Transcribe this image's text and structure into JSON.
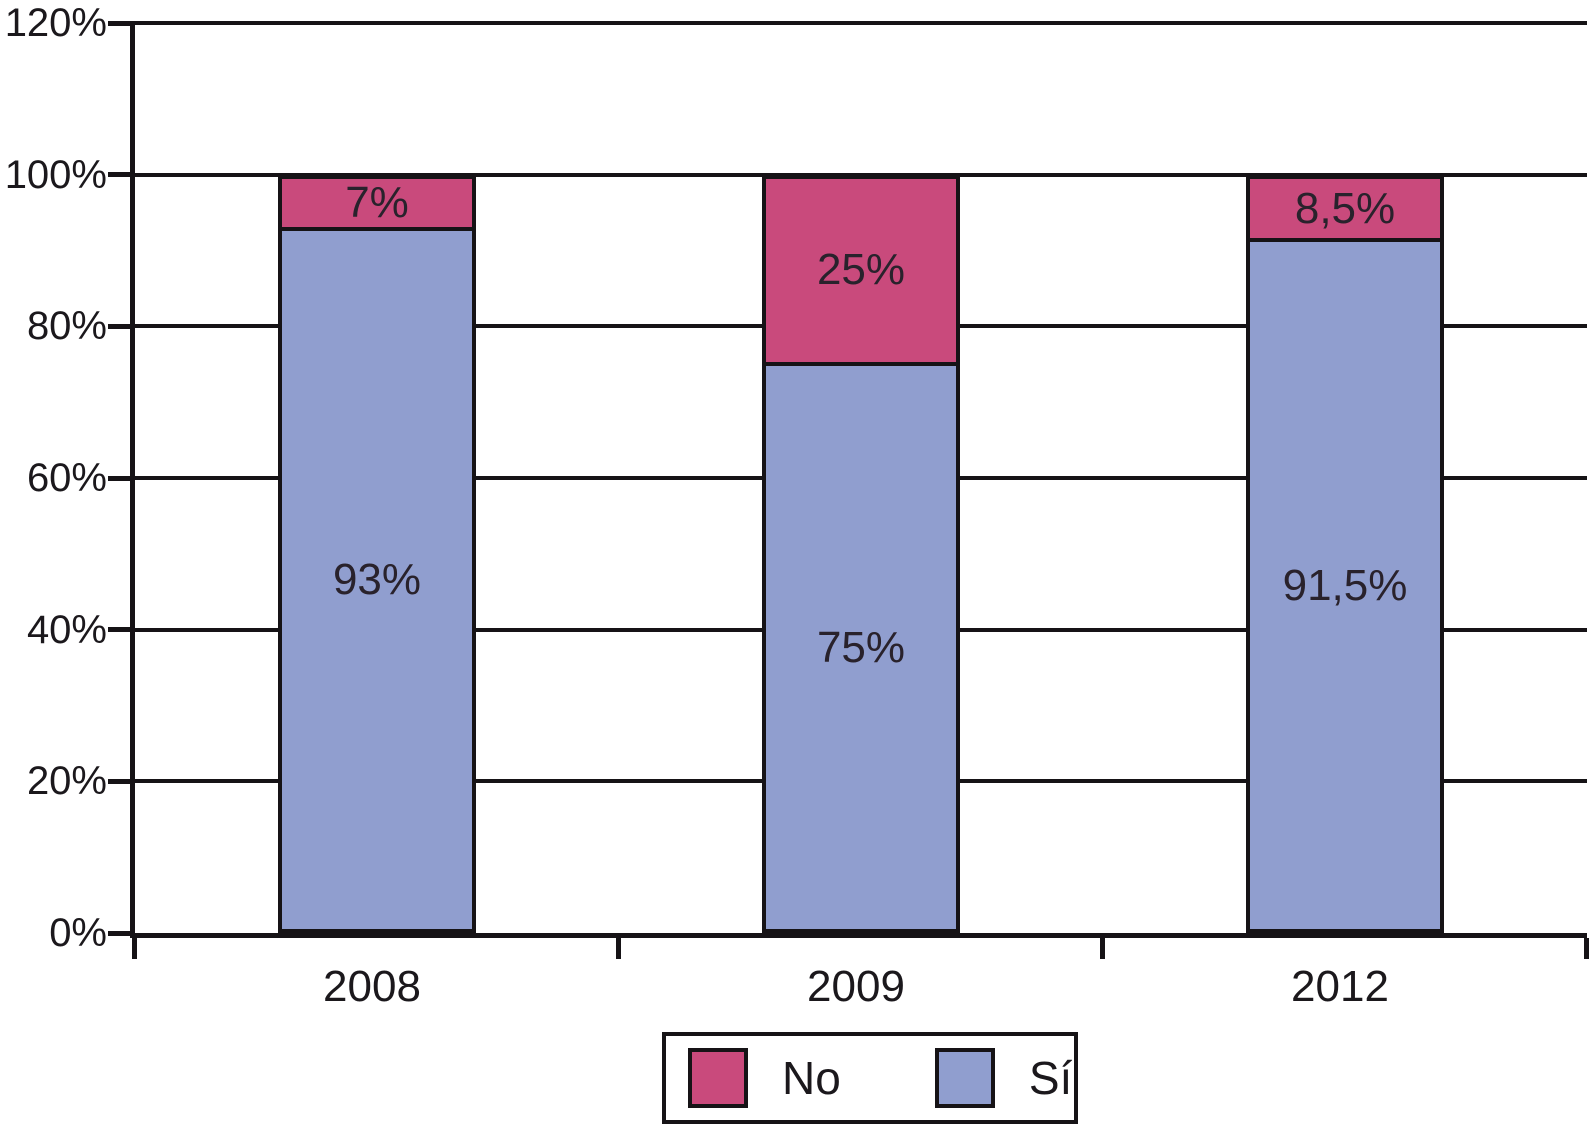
{
  "chart_data": {
    "type": "bar",
    "stacked": true,
    "stack_order": "top-to-bottom",
    "title": "",
    "xlabel": "",
    "ylabel": "",
    "categories": [
      "2008",
      "2009",
      "2012"
    ],
    "series": [
      {
        "name": "No",
        "color": "#c94a7c",
        "values": [
          7,
          25,
          8.5
        ],
        "value_labels": [
          "7%",
          "25%",
          "8,5%"
        ]
      },
      {
        "name": "Sí",
        "color": "#909ecf",
        "values": [
          93,
          75,
          91.5
        ],
        "value_labels": [
          "93%",
          "75%",
          "91,5%"
        ]
      }
    ],
    "y_axis": {
      "min": 0,
      "max": 120,
      "step": 20,
      "tick_labels": [
        "0%",
        "20%",
        "40%",
        "60%",
        "80%",
        "100%",
        "120%"
      ]
    },
    "grid": true,
    "legend": {
      "position": "bottom",
      "entries": [
        {
          "label": "No",
          "color": "#c94a7c"
        },
        {
          "label": "Sí",
          "color": "#909ecf"
        }
      ]
    }
  },
  "colors": {
    "line": "#161316",
    "bar_label_text": "#29222c",
    "axis_label_text": "#1b181c",
    "background": "#ffffff"
  }
}
